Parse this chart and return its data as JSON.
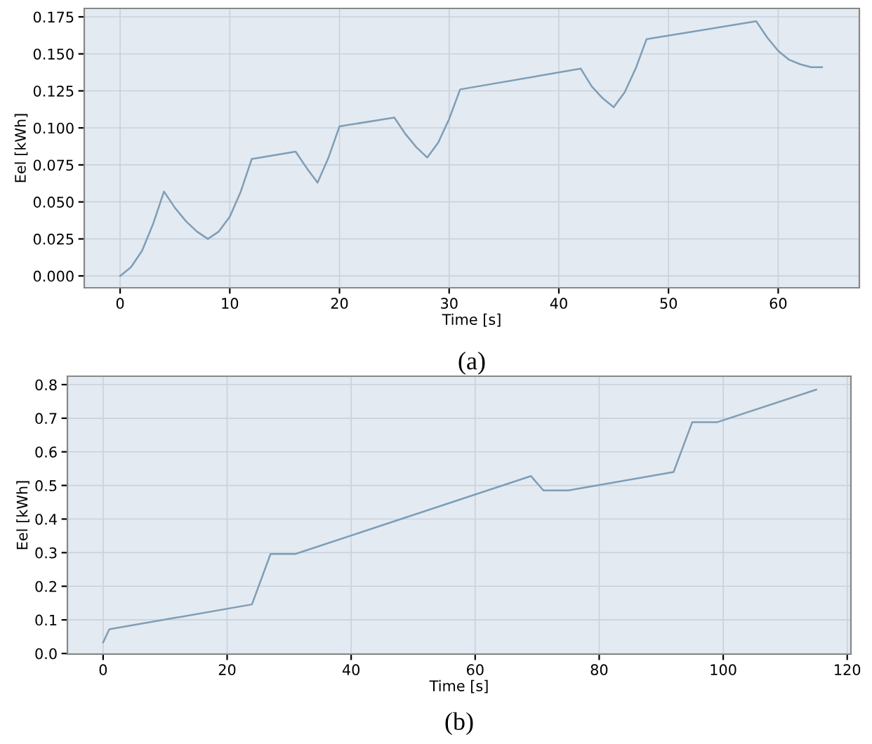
{
  "chart_data": [
    {
      "type": "line",
      "xlabel": "Time [s]",
      "ylabel": "Eel [kWh]",
      "annotations": [
        "(a)"
      ],
      "grid": true,
      "xlim": [
        -3.27,
        67.4
      ],
      "ylim": [
        -0.008,
        0.1807
      ],
      "xticks": [
        0,
        10,
        20,
        30,
        40,
        50,
        60
      ],
      "yticks": [
        {
          "value": 0,
          "label": "0.000"
        },
        {
          "value": 0.025,
          "label": "0.025"
        },
        {
          "value": 0.05,
          "label": "0.050"
        },
        {
          "value": 0.075,
          "label": "0.075"
        },
        {
          "value": 0.1,
          "label": "0.100"
        },
        {
          "value": 0.125,
          "label": "0.125"
        },
        {
          "value": 0.15,
          "label": "0.150"
        },
        {
          "value": 0.175,
          "label": "0.175"
        }
      ],
      "series": [
        {
          "color": "#7f9db5",
          "x": [
            0,
            1,
            2,
            3,
            4,
            5,
            6,
            7,
            8,
            9,
            10,
            11,
            12,
            16,
            17,
            18,
            19,
            20,
            25,
            26,
            27,
            28,
            29,
            30,
            31,
            42,
            43,
            44,
            45,
            46,
            47,
            48,
            58,
            59,
            60,
            61,
            62,
            63,
            64
          ],
          "values": [
            0,
            0.006,
            0.017,
            0.035,
            0.057,
            0.046,
            0.037,
            0.03,
            0.025,
            0.03,
            0.04,
            0.057,
            0.079,
            0.084,
            0.073,
            0.063,
            0.08,
            0.101,
            0.107,
            0.096,
            0.087,
            0.08,
            0.09,
            0.106,
            0.126,
            0.14,
            0.128,
            0.12,
            0.114,
            0.124,
            0.14,
            0.16,
            0.172,
            0.161,
            0.152,
            0.146,
            0.143,
            0.141,
            0.141
          ]
        }
      ]
    },
    {
      "type": "line",
      "xlabel": "Time [s]",
      "ylabel": "Eel [kWh]",
      "annotations": [
        "(b)"
      ],
      "grid": true,
      "xlim": [
        -5.76,
        120.6
      ],
      "ylim": [
        -0.002,
        0.825
      ],
      "xticks": [
        0,
        20,
        40,
        60,
        80,
        100,
        120
      ],
      "yticks": [
        {
          "value": 0,
          "label": "0.0"
        },
        {
          "value": 0.1,
          "label": "0.1"
        },
        {
          "value": 0.2,
          "label": "0.2"
        },
        {
          "value": 0.3,
          "label": "0.3"
        },
        {
          "value": 0.4,
          "label": "0.4"
        },
        {
          "value": 0.5,
          "label": "0.5"
        },
        {
          "value": 0.6,
          "label": "0.6"
        },
        {
          "value": 0.7,
          "label": "0.7"
        },
        {
          "value": 0.8,
          "label": "0.8"
        }
      ],
      "series": [
        {
          "color": "#7f9db5",
          "x": [
            0,
            1,
            24,
            27,
            31,
            69,
            71,
            75,
            92,
            95,
            99,
            115
          ],
          "values": [
            0.033,
            0.072,
            0.146,
            0.296,
            0.296,
            0.528,
            0.485,
            0.485,
            0.54,
            0.688,
            0.688,
            0.785
          ]
        }
      ]
    }
  ]
}
